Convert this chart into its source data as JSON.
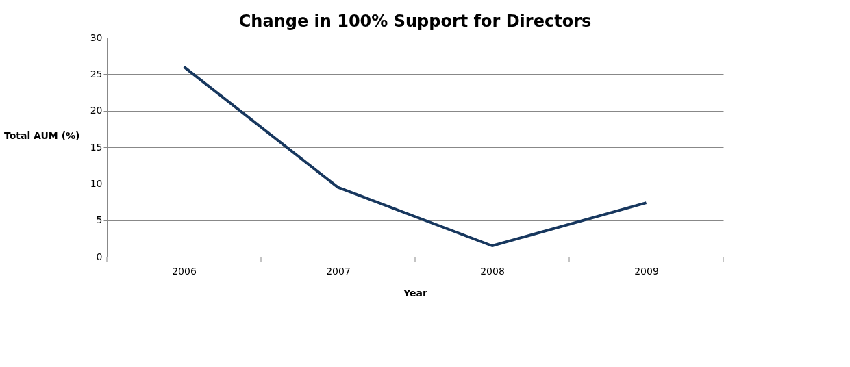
{
  "chart_data": {
    "type": "line",
    "title": "Change in 100% Support for Directors",
    "xlabel": "Year",
    "ylabel": "Total AUM (%)",
    "categories": [
      "2006",
      "2007",
      "2008",
      "2009"
    ],
    "series": [
      {
        "color": "#17375e",
        "values": [
          26.0,
          9.5,
          1.5,
          7.4
        ]
      }
    ],
    "ylim": [
      0,
      30
    ],
    "yticks": [
      0,
      5,
      10,
      15,
      20,
      25,
      30
    ],
    "grid": "y",
    "marker": "none",
    "line_style": "solid"
  }
}
